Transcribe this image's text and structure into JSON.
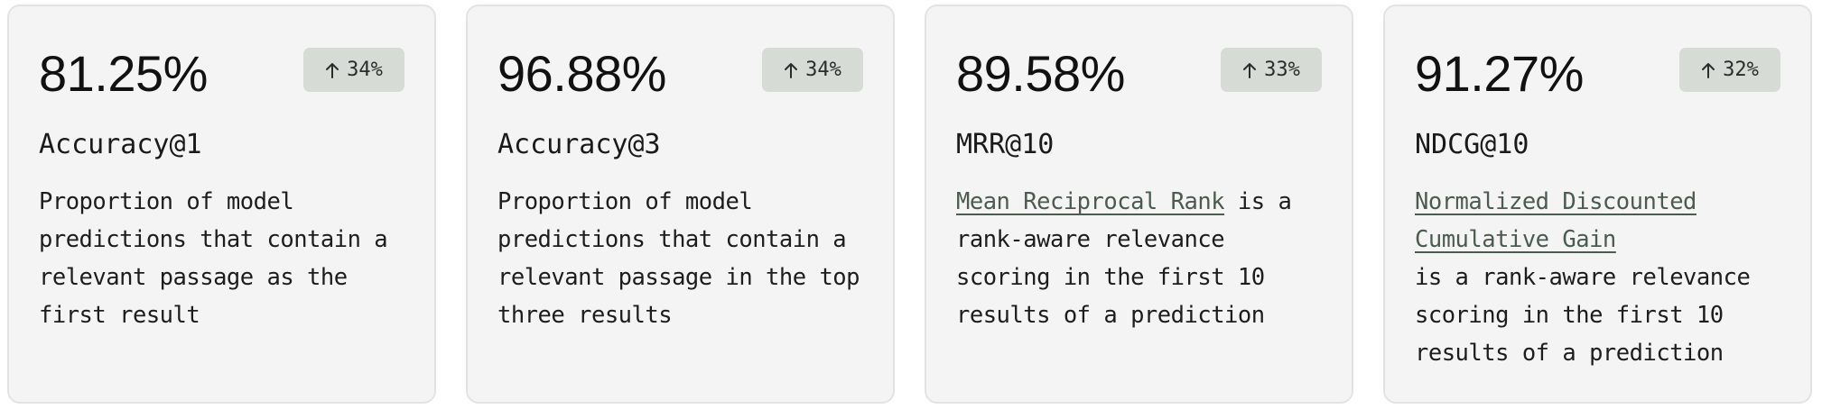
{
  "cards": [
    {
      "value": "81.25%",
      "change": "34%",
      "name": "Accuracy@1",
      "description": "Proportion of model predictions that contain a relevant passage as the first result"
    },
    {
      "value": "96.88%",
      "change": "34%",
      "name": "Accuracy@3",
      "description": "Proportion of model predictions that contain a relevant passage in the top three results"
    },
    {
      "value": "89.58%",
      "change": "33%",
      "name": "MRR@10",
      "link_text": "Mean Reciprocal Rank",
      "description": "is a rank-aware relevance scoring in the first 10 results of a prediction"
    },
    {
      "value": "91.27%",
      "change": "32%",
      "name": "NDCG@10",
      "link_text": "Normalized Discounted Cumulative Gain",
      "description": "is a rank-aware relevance scoring in the first 10 results of a prediction"
    }
  ],
  "icons": {
    "change": "arrow-up-icon"
  },
  "colors": {
    "card_bg": "#f4f4f4",
    "badge_bg": "#d6dbd5",
    "link": "#4b5b4f"
  }
}
